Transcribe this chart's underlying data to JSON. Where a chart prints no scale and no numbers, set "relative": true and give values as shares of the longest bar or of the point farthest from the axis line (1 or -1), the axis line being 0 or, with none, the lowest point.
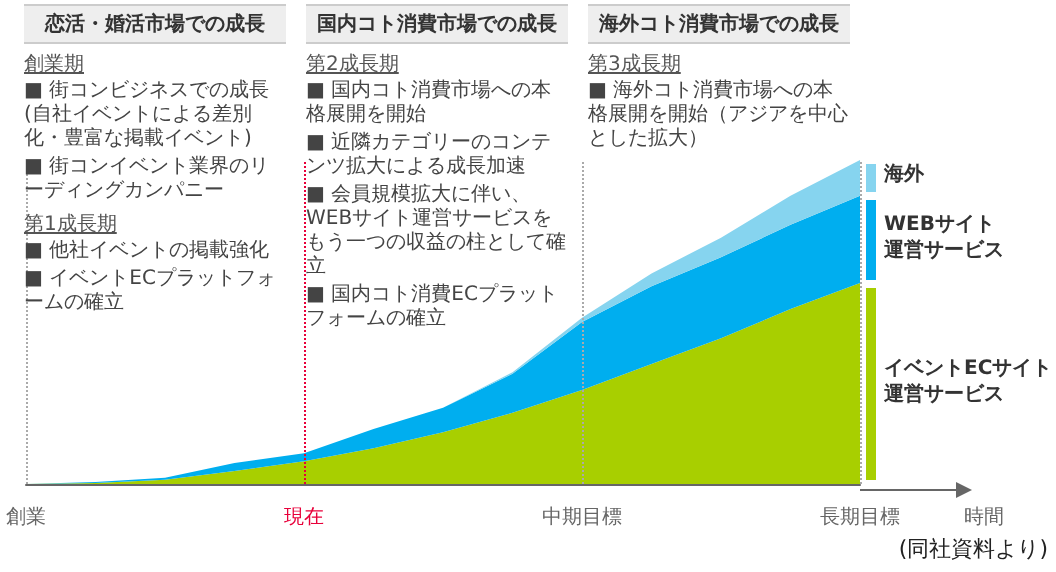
{
  "chart_data": {
    "type": "area",
    "stacked": true,
    "relative": true,
    "xlabel": "時間",
    "legend": "right",
    "categories": [
      "創業",
      null,
      null,
      null,
      "現在",
      null,
      null,
      null,
      "中期目標",
      null,
      null,
      null,
      "長期目標"
    ],
    "series": [
      {
        "name": "イベントECサイト運営サービス",
        "color": "#a8cf00",
        "values": [
          0,
          0.003,
          0.013,
          0.04,
          0.07,
          0.11,
          0.16,
          0.22,
          0.29,
          0.37,
          0.45,
          0.54,
          0.62
        ]
      },
      {
        "name": "WEBサイト運営サービス",
        "color": "#00aeef",
        "values": [
          0,
          0.003,
          0.006,
          0.025,
          0.025,
          0.06,
          0.075,
          0.12,
          0.21,
          0.24,
          0.25,
          0.26,
          0.27
        ]
      },
      {
        "name": "海外",
        "color": "#86d4ef",
        "values": [
          0,
          0,
          0,
          0,
          0,
          0,
          0,
          0.005,
          0.013,
          0.04,
          0.06,
          0.09,
          0.11
        ]
      }
    ],
    "ref_lines": [
      {
        "axis": "x",
        "value": "創業",
        "color": "#aaaaaa",
        "line_style": "dotted"
      },
      {
        "axis": "x",
        "value": "現在",
        "color": "#e8003a",
        "line_style": "dotted"
      },
      {
        "axis": "x",
        "value": "中期目標",
        "color": "#aaaaaa",
        "line_style": "dotted"
      },
      {
        "axis": "x",
        "value": "長期目標",
        "color": "#aaaaaa",
        "line_style": "dotted"
      }
    ],
    "annotations": [
      "恋活・婚活市場での成長",
      "創業期",
      "■ 街コンビジネスでの成長(自社イベントによる差別化・豊富な掲載イベント)",
      "■ 街コンイベント業界のリーディングカンパニー",
      "第1成長期",
      "■ 他社イベントの掲載強化",
      "■ イベントECプラットフォームの確立",
      "国内コト消費市場での成長",
      "第2成長期",
      "■ 国内コト消費市場への本格展開を開始",
      "■ 近隣カテゴリーのコンテンツ拡大による成長加速",
      "■ 会員規模拡大に伴い、WEBサイト運営サービスをもう一つの収益の柱として確立",
      "■ 国内コト消費ECプラットフォームの確立",
      "海外コト消費市場での成長",
      "第3成長期",
      "■ 海外コト消費市場への本格展開を開始（アジアを中心とした拡大）",
      "(同社資料より)"
    ]
  }
}
